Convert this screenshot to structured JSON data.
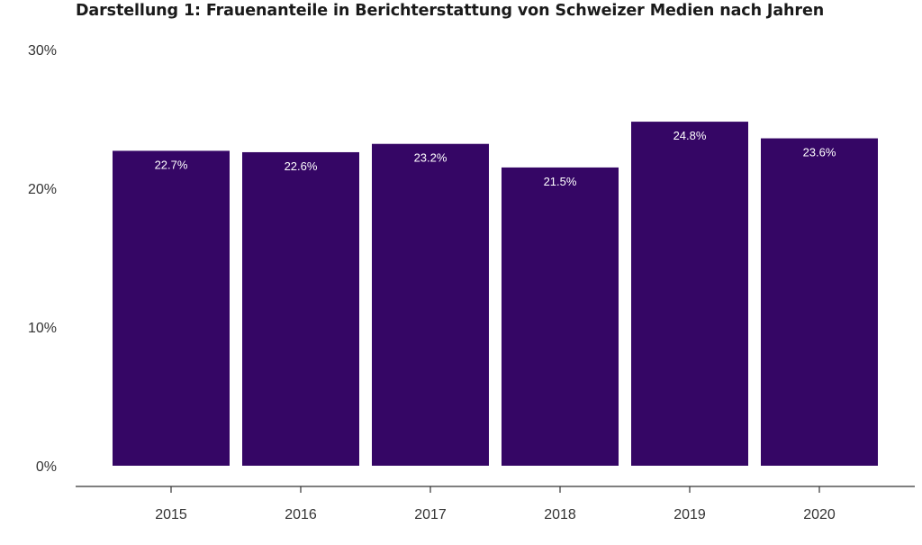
{
  "chart_data": {
    "type": "bar",
    "title": "Darstellung 1: Frauenanteile in Berichterstattung von Schweizer Medien nach Jahren",
    "xlabel": "",
    "ylabel": "",
    "categories": [
      "2015",
      "2016",
      "2017",
      "2018",
      "2019",
      "2020"
    ],
    "values": [
      22.7,
      22.6,
      23.2,
      21.5,
      24.8,
      23.6
    ],
    "data_labels": [
      "22.7%",
      "22.6%",
      "23.2%",
      "21.5%",
      "24.8%",
      "23.6%"
    ],
    "ylim": [
      0,
      30
    ],
    "yticks": [
      0,
      10,
      20,
      30
    ],
    "ytick_labels": [
      "0%",
      "10%",
      "20%",
      "30%"
    ],
    "grid": false,
    "bar_color": "#350665"
  }
}
